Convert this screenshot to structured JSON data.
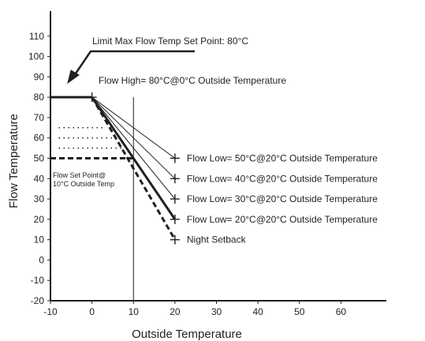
{
  "chart_data": {
    "type": "line",
    "title": "",
    "xlabel": "Outside Temperature",
    "ylabel": "Flow Temperature",
    "xlim": [
      -10,
      70
    ],
    "ylim": [
      -20,
      120
    ],
    "x_ticks": [
      -10,
      0,
      10,
      20,
      30,
      40,
      50,
      60
    ],
    "y_ticks": [
      -20,
      -10,
      0,
      10,
      20,
      30,
      40,
      50,
      60,
      70,
      80,
      90,
      100,
      110
    ],
    "grid": false,
    "colors": {
      "ink": "#231f20"
    },
    "limit_line": {
      "name": "Limit Max Flow Temp Set Point: 80°C",
      "points": [
        [
          -10,
          80
        ],
        [
          0,
          80
        ]
      ]
    },
    "series": [
      {
        "name": "Flow Low= 50°C@20°C Outside Temperature",
        "style": "thin",
        "points": [
          [
            0,
            80
          ],
          [
            20,
            50
          ]
        ]
      },
      {
        "name": "Flow Low= 40°C@20°C Outside Temperature",
        "style": "thin",
        "points": [
          [
            0,
            80
          ],
          [
            20,
            40
          ]
        ]
      },
      {
        "name": "Flow Low= 30°C@20°C Outside Temperature",
        "style": "thin",
        "points": [
          [
            0,
            80
          ],
          [
            20,
            30
          ]
        ]
      },
      {
        "name": "Flow Low= 20°C@20°C Outside Temperature",
        "style": "thick",
        "points": [
          [
            0,
            80
          ],
          [
            20,
            20
          ]
        ]
      },
      {
        "name": "Night Setback",
        "style": "thick-dashed",
        "points": [
          [
            0,
            80
          ],
          [
            20,
            10
          ]
        ]
      }
    ],
    "reference_lines": [
      {
        "orientation": "vertical",
        "x": 10,
        "y_range": [
          -20,
          80
        ]
      },
      {
        "name": "Flow Set Point@ 10°C Outside Temp",
        "style": "thick-dashed",
        "points": [
          [
            -10,
            50
          ],
          [
            10,
            50
          ]
        ]
      },
      {
        "style": "dotted",
        "points": [
          [
            -8,
            65
          ],
          [
            3,
            65
          ]
        ]
      },
      {
        "style": "dotted",
        "points": [
          [
            -8,
            60
          ],
          [
            6,
            60
          ]
        ]
      },
      {
        "style": "dotted",
        "points": [
          [
            -8,
            55
          ],
          [
            8,
            55
          ]
        ]
      }
    ],
    "annotations": {
      "limit_max": "Limit Max Flow Temp Set Point: 80°C",
      "flow_high": "Flow High= 80°C@0°C Outside Temperature",
      "set_point_line1": "Flow Set Point@",
      "set_point_line2": "10°C Outside Temp"
    },
    "markers": [
      [
        0,
        80
      ],
      [
        20,
        50
      ],
      [
        20,
        40
      ],
      [
        20,
        30
      ],
      [
        20,
        20
      ],
      [
        20,
        10
      ]
    ]
  }
}
